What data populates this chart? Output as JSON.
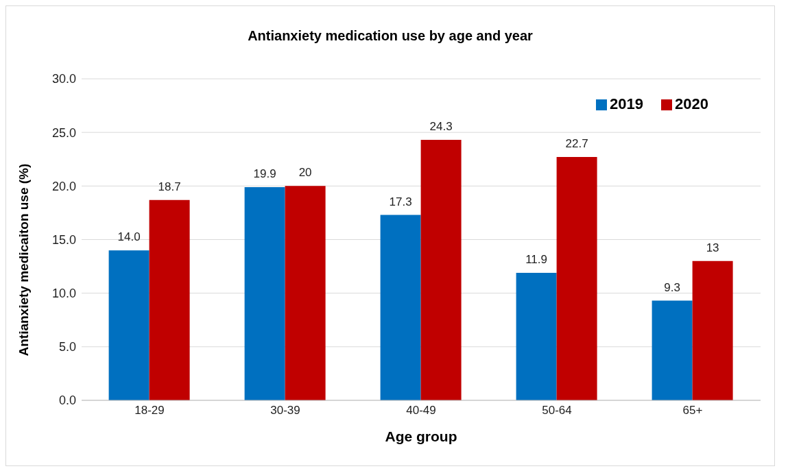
{
  "chart_data": {
    "type": "bar",
    "title": "Antianxiety medication use by age and year",
    "xlabel": "Age group",
    "ylabel": "Antianxiety medicaiton use (%)",
    "categories": [
      "18-29",
      "30-39",
      "40-49",
      "50-64",
      "65+"
    ],
    "series": [
      {
        "name": "2019",
        "color": "#0070c0",
        "values": [
          14.0,
          19.9,
          17.3,
          11.9,
          9.3
        ],
        "value_labels": [
          "14.0",
          "19.9",
          "17.3",
          "11.9",
          "9.3"
        ]
      },
      {
        "name": "2020",
        "color": "#c00000",
        "values": [
          18.7,
          20,
          24.3,
          22.7,
          13
        ],
        "value_labels": [
          "18.7",
          "20",
          "24.3",
          "22.7",
          "13"
        ]
      }
    ],
    "ylim": [
      0,
      30
    ],
    "yticks": [
      {
        "value": 0,
        "label": "0.0"
      },
      {
        "value": 5,
        "label": "5.0"
      },
      {
        "value": 10,
        "label": "10.0"
      },
      {
        "value": 15,
        "label": "15.0"
      },
      {
        "value": 20,
        "label": "20.0"
      },
      {
        "value": 25,
        "label": "25.0"
      },
      {
        "value": 30,
        "label": "30.0"
      }
    ],
    "grid": "y",
    "legend": "top right"
  }
}
